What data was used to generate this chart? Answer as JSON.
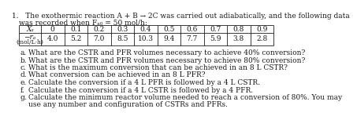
{
  "title_line1": "1.   The exothermic reaction A + B → 2C was carried out adiabatically, and the following data",
  "title_line2": "was recorded when Fₐ₀ = 50 mol/h:",
  "xa_label": "Xₐ",
  "rate_label": "−rₐ",
  "rate_unit": "(mol/L·h)",
  "xa_values": [
    "0",
    "0.1",
    "0.2",
    "0.3",
    "0.4",
    "0.5",
    "0.6",
    "0.7",
    "0.8",
    "0.9"
  ],
  "rate_values": [
    "4.0",
    "5.2",
    "7.0",
    "8.5",
    "10.3",
    "9.4",
    "7.7",
    "5.9",
    "3.8",
    "2.8"
  ],
  "questions": [
    [
      "a.",
      "What are the CSTR and PFR volumes necessary to achieve 40% conversion?"
    ],
    [
      "b.",
      "What are the CSTR and PFR volumes necessary to achieve 80% conversion?"
    ],
    [
      "c.",
      "What is the maximum conversion that can be achieved in an 8 L CSTR?"
    ],
    [
      "d.",
      "What conversion can be achieved in an 8 L PFR?"
    ],
    [
      "e.",
      "Calculate the conversion if a 4 L PFR is followed by a 4 L CSTR."
    ],
    [
      "f.",
      "Calculate the conversion if a 4 L CSTR is followed by a 4 PFR."
    ],
    [
      "g.",
      "Calculate the minimum reactor volume needed to reach a conversion of 80%. You may"
    ],
    [
      "",
      "use any number and configuration of CSTRs and PFRs."
    ]
  ],
  "background": "#ffffff",
  "text_color": "#1a1a1a",
  "font_size": 6.5
}
